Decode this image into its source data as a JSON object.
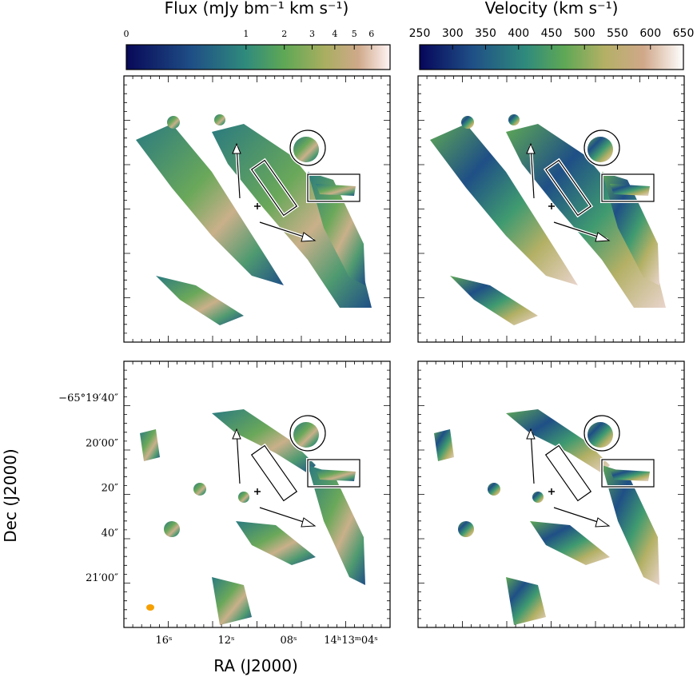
{
  "colorbars": [
    {
      "title": "Flux (mJy bm⁻¹ km s⁻¹)",
      "ticks": [
        0,
        1,
        2,
        3,
        4,
        5,
        6
      ],
      "clim": [
        0,
        7.2
      ],
      "scale": "power",
      "exponent": 0.4
    },
    {
      "title": "Velocity (km s⁻¹)",
      "ticks": [
        250,
        300,
        350,
        400,
        450,
        500,
        550,
        600,
        650
      ],
      "clim": [
        250,
        650
      ],
      "scale": "linear"
    }
  ],
  "axes": {
    "xlabel": "RA (J2000)",
    "ylabel": "Dec (J2000)",
    "xticklabels": [
      "16ˢ",
      "12ˢ",
      "08ˢ",
      "14ʰ13ᵐ04ˢ"
    ],
    "yticklabels": [
      "−65°19′40″",
      "20′00″",
      "20″",
      "40″",
      "21′00″"
    ]
  }
}
